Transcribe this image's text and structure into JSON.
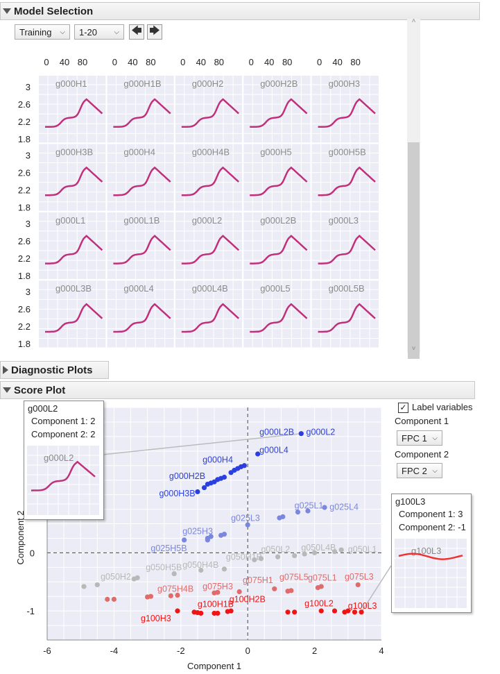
{
  "model_selection": {
    "title": "Model Selection",
    "dataset_select": "Training",
    "range_select": "1-20",
    "prev_icon": "arrow-left-icon",
    "next_icon": "arrow-right-icon",
    "x_ticks": [
      "0",
      "40",
      "80"
    ],
    "y_ticks": [
      "3",
      "2.6",
      "2.2",
      "1.8"
    ],
    "cells": [
      "g000H1",
      "g000H1B",
      "g000H2",
      "g000H2B",
      "g000H3",
      "g000H3B",
      "g000H4",
      "g000H4B",
      "g000H5",
      "g000H5B",
      "g000L1",
      "g000L1B",
      "g000L2",
      "g000L2B",
      "g000L3",
      "g000L3B",
      "g000L4",
      "g000L4B",
      "g000L5",
      "g000L5B"
    ],
    "curve_color": "#c0307a"
  },
  "diagnostic": {
    "title": "Diagnostic Plots"
  },
  "score_plot": {
    "title": "Score Plot",
    "label_variables": "Label variables",
    "label_variables_checked": true,
    "component1_label": "Component 1",
    "component1_value": "FPC 1",
    "component2_label": "Component 2",
    "component2_value": "FPC 2",
    "tooltip_left": {
      "title": "g000L2",
      "line1": "Component 1: 2",
      "line2": "Component 2: 2",
      "thumb_label": "g000L2"
    },
    "tooltip_right": {
      "title": "g100L3",
      "line1": "Component 1: 3",
      "line2": "Component 2: -1",
      "thumb_label": "g100L3"
    }
  },
  "chart_data": {
    "type": "scatter",
    "xlabel": "Component 1",
    "ylabel": "Component 2",
    "x_ticks": [
      "-6",
      "-4",
      "-2",
      "0",
      "2",
      "4"
    ],
    "y_ticks": [
      "-1",
      "0",
      "1",
      "2"
    ],
    "xlim": [
      -6,
      4
    ],
    "ylim": [
      -1.5,
      2.5
    ],
    "colors": {
      "g000": "#2b3fe0",
      "g025": "#7b87dd",
      "g050": "#b8b8b8",
      "g075": "#e06b6b",
      "g100": "#ef1515"
    },
    "points": [
      {
        "g": "g000",
        "x": 1.6,
        "y": 2.05
      },
      {
        "g": "g000",
        "x": 0.3,
        "y": 1.7
      },
      {
        "g": "g000",
        "x": -0.1,
        "y": 1.5
      },
      {
        "g": "g000",
        "x": -0.2,
        "y": 1.48
      },
      {
        "g": "g000",
        "x": -0.3,
        "y": 1.45
      },
      {
        "g": "g000",
        "x": -0.4,
        "y": 1.42
      },
      {
        "g": "g000",
        "x": -0.5,
        "y": 1.38
      },
      {
        "g": "g000",
        "x": -0.7,
        "y": 1.3
      },
      {
        "g": "g000",
        "x": -0.8,
        "y": 1.28
      },
      {
        "g": "g000",
        "x": -0.9,
        "y": 1.26
      },
      {
        "g": "g000",
        "x": -1.0,
        "y": 1.22
      },
      {
        "g": "g000",
        "x": -1.1,
        "y": 1.2
      },
      {
        "g": "g000",
        "x": -1.2,
        "y": 1.18
      },
      {
        "g": "g000",
        "x": -1.3,
        "y": 1.12
      },
      {
        "g": "g000",
        "x": -1.5,
        "y": 1.05
      },
      {
        "g": "g025",
        "x": 2.3,
        "y": 0.78
      },
      {
        "g": "g025",
        "x": 1.8,
        "y": 0.72
      },
      {
        "g": "g025",
        "x": 1.5,
        "y": 0.7
      },
      {
        "g": "g025",
        "x": 1.05,
        "y": 0.62
      },
      {
        "g": "g025",
        "x": 0.95,
        "y": 0.6
      },
      {
        "g": "g025",
        "x": 0.0,
        "y": 0.48
      },
      {
        "g": "g025",
        "x": -0.7,
        "y": 0.32
      },
      {
        "g": "g025",
        "x": -0.8,
        "y": 0.3
      },
      {
        "g": "g025",
        "x": -1.1,
        "y": 0.28
      },
      {
        "g": "g025",
        "x": -1.2,
        "y": 0.25
      },
      {
        "g": "g025",
        "x": -1.9,
        "y": 0.22
      },
      {
        "g": "g025",
        "x": -1.2,
        "y": 0.22
      },
      {
        "g": "g050",
        "x": 2.8,
        "y": 0.05
      },
      {
        "g": "g050",
        "x": 2.6,
        "y": 0.02
      },
      {
        "g": "g050",
        "x": 2.0,
        "y": 0.0
      },
      {
        "g": "g050",
        "x": 1.7,
        "y": -0.02
      },
      {
        "g": "g050",
        "x": 1.4,
        "y": -0.05
      },
      {
        "g": "g050",
        "x": 0.9,
        "y": -0.07
      },
      {
        "g": "g050",
        "x": 0.4,
        "y": -0.1
      },
      {
        "g": "g050",
        "x": 0.2,
        "y": -0.12
      },
      {
        "g": "g050",
        "x": -0.7,
        "y": -0.28
      },
      {
        "g": "g050",
        "x": -1.4,
        "y": -0.3
      },
      {
        "g": "g050",
        "x": -2.2,
        "y": -0.36
      },
      {
        "g": "g050",
        "x": -3.3,
        "y": -0.43
      },
      {
        "g": "g050",
        "x": -3.4,
        "y": -0.45
      },
      {
        "g": "g050",
        "x": -4.5,
        "y": -0.55
      },
      {
        "g": "g050",
        "x": -4.9,
        "y": -0.58
      },
      {
        "g": "g075",
        "x": 3.3,
        "y": -0.55
      },
      {
        "g": "g075",
        "x": 2.2,
        "y": -0.58
      },
      {
        "g": "g075",
        "x": 2.1,
        "y": -0.6
      },
      {
        "g": "g075",
        "x": 1.3,
        "y": -0.65
      },
      {
        "g": "g075",
        "x": 1.2,
        "y": -0.66
      },
      {
        "g": "g075",
        "x": 0.8,
        "y": -0.62
      },
      {
        "g": "g075",
        "x": -0.25,
        "y": -0.67
      },
      {
        "g": "g075",
        "x": -0.9,
        "y": -0.68
      },
      {
        "g": "g075",
        "x": -1.0,
        "y": -0.69
      },
      {
        "g": "g075",
        "x": -2.1,
        "y": -0.73
      },
      {
        "g": "g075",
        "x": -2.3,
        "y": -0.74
      },
      {
        "g": "g075",
        "x": -2.9,
        "y": -0.75
      },
      {
        "g": "g075",
        "x": -3.0,
        "y": -0.76
      },
      {
        "g": "g075",
        "x": -4.0,
        "y": -0.8
      },
      {
        "g": "g075",
        "x": -4.2,
        "y": -0.8
      },
      {
        "g": "g100",
        "x": 3.4,
        "y": -1.02
      },
      {
        "g": "g100",
        "x": 3.2,
        "y": -1.02
      },
      {
        "g": "g100",
        "x": 3.0,
        "y": -1.0
      },
      {
        "g": "g100",
        "x": 2.9,
        "y": -1.02
      },
      {
        "g": "g100",
        "x": 2.6,
        "y": -1.0
      },
      {
        "g": "g100",
        "x": 2.2,
        "y": -1.0
      },
      {
        "g": "g100",
        "x": 1.4,
        "y": -1.02
      },
      {
        "g": "g100",
        "x": 1.2,
        "y": -1.02
      },
      {
        "g": "g100",
        "x": -0.5,
        "y": -1.0
      },
      {
        "g": "g100",
        "x": -0.6,
        "y": -1.01
      },
      {
        "g": "g100",
        "x": -0.9,
        "y": -1.04
      },
      {
        "g": "g100",
        "x": -1.0,
        "y": -1.04
      },
      {
        "g": "g100",
        "x": -1.4,
        "y": -1.04
      },
      {
        "g": "g100",
        "x": -1.5,
        "y": -1.03
      },
      {
        "g": "g100",
        "x": -1.6,
        "y": -1.02
      },
      {
        "g": "g100",
        "x": -2.1,
        "y": -1.0
      }
    ],
    "labels": [
      {
        "t": "g000L2B",
        "g": "g000",
        "x": 0.35,
        "y": 2.03
      },
      {
        "t": "g000L2",
        "g": "g000",
        "x": 1.75,
        "y": 2.03
      },
      {
        "t": "g000L4",
        "g": "g000",
        "x": 0.35,
        "y": 1.72
      },
      {
        "t": "g000H4",
        "g": "g000",
        "x": -1.35,
        "y": 1.55
      },
      {
        "t": "g000H2B",
        "g": "g000",
        "x": -2.35,
        "y": 1.27
      },
      {
        "t": "g000H3B",
        "g": "g000",
        "x": -2.65,
        "y": 0.97
      },
      {
        "t": "g025L1",
        "g": "g025",
        "x": 1.4,
        "y": 0.76
      },
      {
        "t": "g025L4",
        "g": "g025",
        "x": 2.45,
        "y": 0.74
      },
      {
        "t": "g025L3",
        "g": "g025",
        "x": -0.5,
        "y": 0.55
      },
      {
        "t": "g025H3",
        "g": "g025",
        "x": -1.95,
        "y": 0.32
      },
      {
        "t": "g025H5B",
        "g": "g025",
        "x": -2.9,
        "y": 0.03
      },
      {
        "t": "g050L2",
        "g": "g050",
        "x": 0.4,
        "y": 0.01
      },
      {
        "t": "g050L4B",
        "g": "g050",
        "x": 1.6,
        "y": 0.04
      },
      {
        "t": "g050L1",
        "g": "g050",
        "x": 3.0,
        "y": 0.01
      },
      {
        "t": "g050H1B",
        "g": "g050",
        "x": -0.65,
        "y": -0.12
      },
      {
        "t": "g050H4B",
        "g": "g050",
        "x": -1.95,
        "y": -0.26
      },
      {
        "t": "g050H5B",
        "g": "g050",
        "x": -3.05,
        "y": -0.3
      },
      {
        "t": "g050H2",
        "g": "g050",
        "x": -4.4,
        "y": -0.46
      },
      {
        "t": "g075L3",
        "g": "g075",
        "x": 2.9,
        "y": -0.46
      },
      {
        "t": "g075L1",
        "g": "g075",
        "x": 1.8,
        "y": -0.48
      },
      {
        "t": "g075L5",
        "g": "g075",
        "x": 0.95,
        "y": -0.47
      },
      {
        "t": "g075H1",
        "g": "g075",
        "x": -0.15,
        "y": -0.52
      },
      {
        "t": "g075H3",
        "g": "g075",
        "x": -1.35,
        "y": -0.63
      },
      {
        "t": "g075H4B",
        "g": "g075",
        "x": -2.7,
        "y": -0.67
      },
      {
        "t": "g100L2",
        "g": "g100",
        "x": 1.7,
        "y": -0.92
      },
      {
        "t": "g100L3",
        "g": "g100",
        "x": 3.0,
        "y": -0.96
      },
      {
        "t": "g100H2B",
        "g": "g100",
        "x": -0.55,
        "y": -0.85
      },
      {
        "t": "g100H1B",
        "g": "g100",
        "x": -1.5,
        "y": -0.93
      },
      {
        "t": "g100H3",
        "g": "g100",
        "x": -3.2,
        "y": -1.18
      }
    ]
  }
}
